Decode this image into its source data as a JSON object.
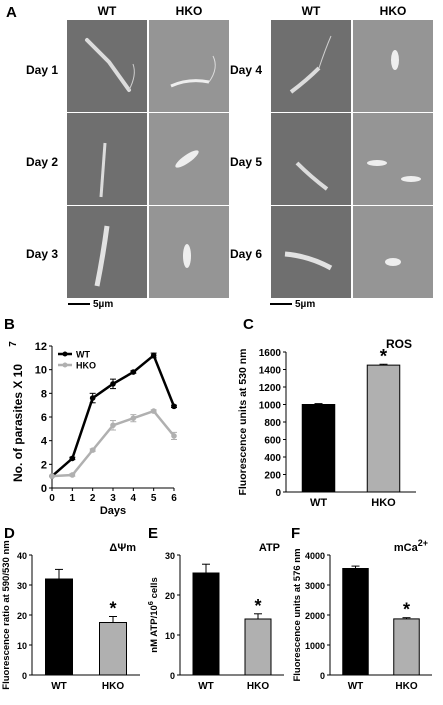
{
  "panelA": {
    "letter": "A",
    "columns": [
      "WT",
      "HKO",
      "WT",
      "HKO"
    ],
    "rows_left": [
      "Day 1",
      "Day 2",
      "Day 3"
    ],
    "rows_right": [
      "Day 4",
      "Day 5",
      "Day 6"
    ],
    "scale_left": "5µm",
    "scale_right": "5µm"
  },
  "panelB": {
    "letter": "B"
  },
  "panelC": {
    "letter": "C"
  },
  "panelD": {
    "letter": "D"
  },
  "panelE": {
    "letter": "E"
  },
  "panelF": {
    "letter": "F"
  },
  "chart_data": [
    {
      "id": "B",
      "type": "line",
      "ylabel": "No. of parasites X 10",
      "ylabel_exp": "7",
      "xlabel": "Days",
      "xlim": [
        0,
        6
      ],
      "ylim": [
        0,
        12
      ],
      "xticks": [
        0,
        1,
        2,
        3,
        4,
        5,
        6
      ],
      "yticks": [
        0,
        2,
        4,
        6,
        8,
        10,
        12
      ],
      "x": [
        0,
        1,
        2,
        3,
        4,
        5,
        6
      ],
      "legend": "top-left",
      "series": [
        {
          "name": "WT",
          "color": "#000000",
          "values": [
            1.0,
            2.5,
            7.6,
            8.8,
            9.8,
            11.2,
            6.9
          ],
          "errors": [
            0,
            0.1,
            0.4,
            0.4,
            0.1,
            0.2,
            0.1
          ]
        },
        {
          "name": "HKO",
          "color": "#b0b0b0",
          "values": [
            1.0,
            1.1,
            3.2,
            5.3,
            5.9,
            6.5,
            4.4
          ],
          "errors": [
            0,
            0.1,
            0.1,
            0.4,
            0.3,
            0.1,
            0.3
          ]
        }
      ]
    },
    {
      "id": "C",
      "type": "bar",
      "title": "ROS",
      "ylabel": "Fluorescence units at 530 nm",
      "categories": [
        "WT",
        "HKO"
      ],
      "values": [
        1000,
        1450
      ],
      "errors": [
        10,
        10
      ],
      "colors": [
        "#000000",
        "#b0b0b0"
      ],
      "ylim": [
        0,
        1600
      ],
      "yticks": [
        0,
        200,
        400,
        600,
        800,
        1000,
        1200,
        1400,
        1600
      ],
      "significance": [
        "",
        "*"
      ]
    },
    {
      "id": "D",
      "type": "bar",
      "title": "ΔΨm",
      "ylabel": "Fluorescence ratio at 590/530 nm",
      "categories": [
        "WT",
        "HKO"
      ],
      "values": [
        32,
        17.5
      ],
      "errors": [
        3.2,
        2
      ],
      "colors": [
        "#000000",
        "#b0b0b0"
      ],
      "ylim": [
        0,
        40
      ],
      "yticks": [
        0,
        10,
        20,
        30,
        40
      ],
      "significance": [
        "",
        "*"
      ]
    },
    {
      "id": "E",
      "type": "bar",
      "title": "ATP",
      "ylabel": "nM ATP/10",
      "ylabel_exp": "6",
      "ylabel_suffix": " cells",
      "categories": [
        "WT",
        "HKO"
      ],
      "values": [
        25.5,
        14
      ],
      "errors": [
        2.2,
        1.3
      ],
      "colors": [
        "#000000",
        "#b0b0b0"
      ],
      "ylim": [
        0,
        30
      ],
      "yticks": [
        0,
        10,
        20,
        30
      ],
      "significance": [
        "",
        "*"
      ]
    },
    {
      "id": "F",
      "type": "bar",
      "title": "mCa",
      "title_sup": "2+",
      "ylabel": "Fluorescence units at 576 nm",
      "categories": [
        "WT",
        "HKO"
      ],
      "values": [
        3550,
        1870
      ],
      "errors": [
        80,
        40
      ],
      "colors": [
        "#000000",
        "#b0b0b0"
      ],
      "ylim": [
        0,
        4000
      ],
      "yticks": [
        0,
        1000,
        2000,
        3000,
        4000
      ],
      "significance": [
        "",
        "*"
      ]
    }
  ]
}
